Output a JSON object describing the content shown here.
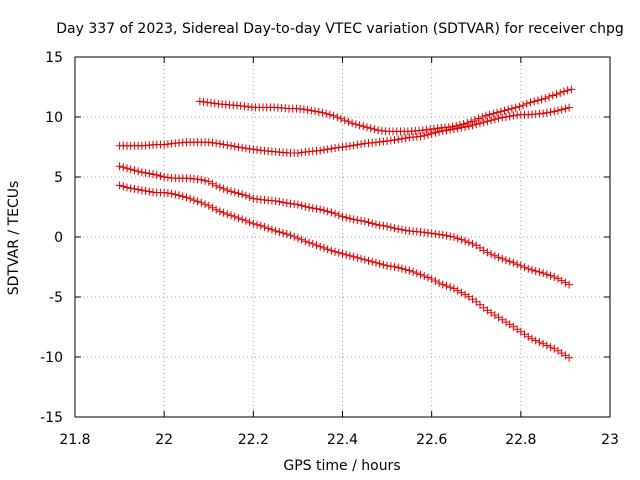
{
  "chart_data": {
    "type": "scatter",
    "title": "Day 337 of 2023, Sidereal Day-to-day VTEC variation (SDTVAR) for receiver chpg",
    "xlabel": "GPS time / hours",
    "ylabel": "SDTVAR / TECUs",
    "xlim": [
      21.8,
      23
    ],
    "ylim": [
      -15,
      15
    ],
    "x_ticks": [
      "21.8",
      "22",
      "22.2",
      "22.4",
      "22.6",
      "22.8",
      "23"
    ],
    "y_ticks": [
      "-15",
      "-10",
      "-5",
      "0",
      "5",
      "10",
      "15"
    ],
    "grid": true,
    "marker": "+",
    "color": "#dd0000",
    "series": [
      {
        "name": "series-1",
        "x": [
          22.08,
          22.1,
          22.12,
          22.15,
          22.18,
          22.2,
          22.22,
          22.25,
          22.28,
          22.3,
          22.32,
          22.35,
          22.38,
          22.4,
          22.42,
          22.45,
          22.48,
          22.5,
          22.52,
          22.55,
          22.58,
          22.6,
          22.62,
          22.65,
          22.68,
          22.7,
          22.72,
          22.75,
          22.78,
          22.8,
          22.82,
          22.85,
          22.88,
          22.91
        ],
        "y": [
          11.3,
          11.2,
          11.1,
          11.0,
          10.9,
          10.8,
          10.8,
          10.8,
          10.7,
          10.7,
          10.6,
          10.4,
          10.1,
          9.8,
          9.5,
          9.2,
          8.9,
          8.8,
          8.8,
          8.8,
          8.9,
          9.0,
          9.1,
          9.2,
          9.5,
          9.8,
          10.1,
          10.4,
          10.7,
          10.9,
          11.2,
          11.5,
          11.9,
          12.3
        ]
      },
      {
        "name": "series-2",
        "x": [
          21.9,
          21.92,
          21.95,
          21.98,
          22.0,
          22.02,
          22.05,
          22.08,
          22.1,
          22.12,
          22.15,
          22.18,
          22.2,
          22.22,
          22.25,
          22.28,
          22.3,
          22.32,
          22.35,
          22.38,
          22.4,
          22.42,
          22.45,
          22.48,
          22.5,
          22.52,
          22.55,
          22.58,
          22.6,
          22.62,
          22.65,
          22.68,
          22.7,
          22.72,
          22.75,
          22.78,
          22.8,
          22.82,
          22.85,
          22.88,
          22.91
        ],
        "y": [
          7.6,
          7.6,
          7.6,
          7.7,
          7.7,
          7.8,
          7.9,
          7.9,
          7.9,
          7.8,
          7.6,
          7.4,
          7.3,
          7.2,
          7.1,
          7.0,
          7.0,
          7.1,
          7.2,
          7.4,
          7.5,
          7.6,
          7.8,
          7.9,
          8.0,
          8.1,
          8.3,
          8.4,
          8.6,
          8.8,
          9.0,
          9.2,
          9.4,
          9.6,
          9.9,
          10.1,
          10.2,
          10.2,
          10.3,
          10.5,
          10.8
        ]
      },
      {
        "name": "series-3",
        "x": [
          21.9,
          21.92,
          21.95,
          21.98,
          22.0,
          22.02,
          22.05,
          22.08,
          22.1,
          22.12,
          22.15,
          22.18,
          22.2,
          22.22,
          22.25,
          22.28,
          22.3,
          22.32,
          22.35,
          22.38,
          22.4,
          22.42,
          22.45,
          22.48,
          22.5,
          22.52,
          22.55,
          22.58,
          22.6,
          22.62,
          22.65,
          22.68,
          22.7,
          22.72,
          22.75,
          22.78,
          22.8,
          22.82,
          22.85,
          22.88,
          22.91
        ],
        "y": [
          5.9,
          5.7,
          5.4,
          5.2,
          5.0,
          4.9,
          4.9,
          4.8,
          4.6,
          4.2,
          3.8,
          3.5,
          3.2,
          3.1,
          3.0,
          2.8,
          2.7,
          2.5,
          2.3,
          2.0,
          1.7,
          1.5,
          1.3,
          1.0,
          0.9,
          0.7,
          0.5,
          0.4,
          0.3,
          0.2,
          0.0,
          -0.4,
          -0.7,
          -1.2,
          -1.7,
          -2.1,
          -2.4,
          -2.7,
          -3.0,
          -3.4,
          -4.0
        ]
      },
      {
        "name": "series-4",
        "x": [
          21.9,
          21.92,
          21.95,
          21.98,
          22.0,
          22.02,
          22.05,
          22.08,
          22.1,
          22.12,
          22.15,
          22.18,
          22.2,
          22.22,
          22.25,
          22.28,
          22.3,
          22.32,
          22.35,
          22.38,
          22.4,
          22.42,
          22.45,
          22.48,
          22.5,
          22.52,
          22.55,
          22.58,
          22.6,
          22.62,
          22.65,
          22.68,
          22.7,
          22.72,
          22.75,
          22.78,
          22.8,
          22.82,
          22.85,
          22.88,
          22.91
        ],
        "y": [
          4.3,
          4.1,
          3.9,
          3.7,
          3.7,
          3.6,
          3.3,
          2.9,
          2.6,
          2.2,
          1.8,
          1.4,
          1.1,
          0.9,
          0.5,
          0.2,
          -0.1,
          -0.4,
          -0.8,
          -1.2,
          -1.4,
          -1.6,
          -1.9,
          -2.2,
          -2.4,
          -2.5,
          -2.8,
          -3.2,
          -3.5,
          -3.9,
          -4.3,
          -4.9,
          -5.4,
          -6.0,
          -6.7,
          -7.4,
          -7.9,
          -8.4,
          -8.9,
          -9.4,
          -10.1
        ]
      }
    ]
  }
}
